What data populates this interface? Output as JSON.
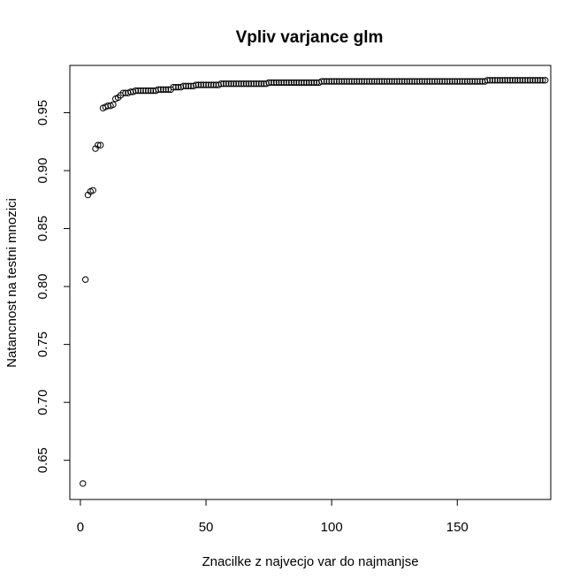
{
  "chart_data": {
    "type": "scatter",
    "title": "Vpliv varjance glm",
    "xlabel": "Znacilke z najvecjo var do najmanjse",
    "ylabel": "Natancnost na testni mnozici",
    "xlim": [
      -4.2,
      187.2
    ],
    "ylim": [
      0.6162,
      0.9908
    ],
    "xticks": [
      "0",
      "50",
      "100",
      "150"
    ],
    "yticks": [
      "0.65",
      "0.70",
      "0.75",
      "0.80",
      "0.85",
      "0.90",
      "0.95"
    ],
    "marker": "open-circle",
    "color": "#000000",
    "x_start": 1,
    "y": [
      0.63,
      0.806,
      0.879,
      0.882,
      0.883,
      0.919,
      0.922,
      0.922,
      0.954,
      0.955,
      0.956,
      0.956,
      0.957,
      0.962,
      0.963,
      0.965,
      0.967,
      0.967,
      0.967,
      0.968,
      0.968,
      0.969,
      0.969,
      0.969,
      0.969,
      0.969,
      0.969,
      0.969,
      0.969,
      0.969,
      0.97,
      0.97,
      0.97,
      0.97,
      0.97,
      0.97,
      0.972,
      0.972,
      0.972,
      0.972,
      0.973,
      0.973,
      0.973,
      0.973,
      0.973,
      0.974,
      0.974,
      0.974,
      0.974,
      0.974,
      0.974,
      0.974,
      0.974,
      0.974,
      0.974,
      0.975,
      0.975,
      0.975,
      0.975,
      0.975,
      0.975,
      0.975,
      0.975,
      0.975,
      0.975,
      0.975,
      0.975,
      0.975,
      0.975,
      0.975,
      0.975,
      0.975,
      0.975,
      0.975,
      0.976,
      0.976,
      0.976,
      0.976,
      0.976,
      0.976,
      0.976,
      0.976,
      0.976,
      0.976,
      0.976,
      0.976,
      0.976,
      0.976,
      0.976,
      0.976,
      0.976,
      0.976,
      0.976,
      0.976,
      0.976,
      0.977,
      0.977,
      0.977,
      0.977,
      0.977,
      0.977,
      0.977,
      0.977,
      0.977,
      0.977,
      0.977,
      0.977,
      0.977,
      0.977,
      0.977,
      0.977,
      0.977,
      0.977,
      0.977,
      0.977,
      0.977,
      0.977,
      0.977,
      0.977,
      0.977,
      0.977,
      0.977,
      0.977,
      0.977,
      0.977,
      0.977,
      0.977,
      0.977,
      0.977,
      0.977,
      0.977,
      0.977,
      0.977,
      0.977,
      0.977,
      0.977,
      0.977,
      0.977,
      0.977,
      0.977,
      0.977,
      0.977,
      0.977,
      0.977,
      0.977,
      0.977,
      0.977,
      0.977,
      0.977,
      0.977,
      0.977,
      0.977,
      0.977,
      0.977,
      0.977,
      0.977,
      0.977,
      0.977,
      0.977,
      0.977,
      0.977,
      0.978,
      0.978,
      0.978,
      0.978,
      0.978,
      0.978,
      0.978,
      0.978,
      0.978,
      0.978,
      0.978,
      0.978,
      0.978,
      0.978,
      0.978,
      0.978,
      0.978,
      0.978,
      0.978,
      0.978,
      0.978,
      0.978,
      0.978,
      0.978
    ]
  }
}
